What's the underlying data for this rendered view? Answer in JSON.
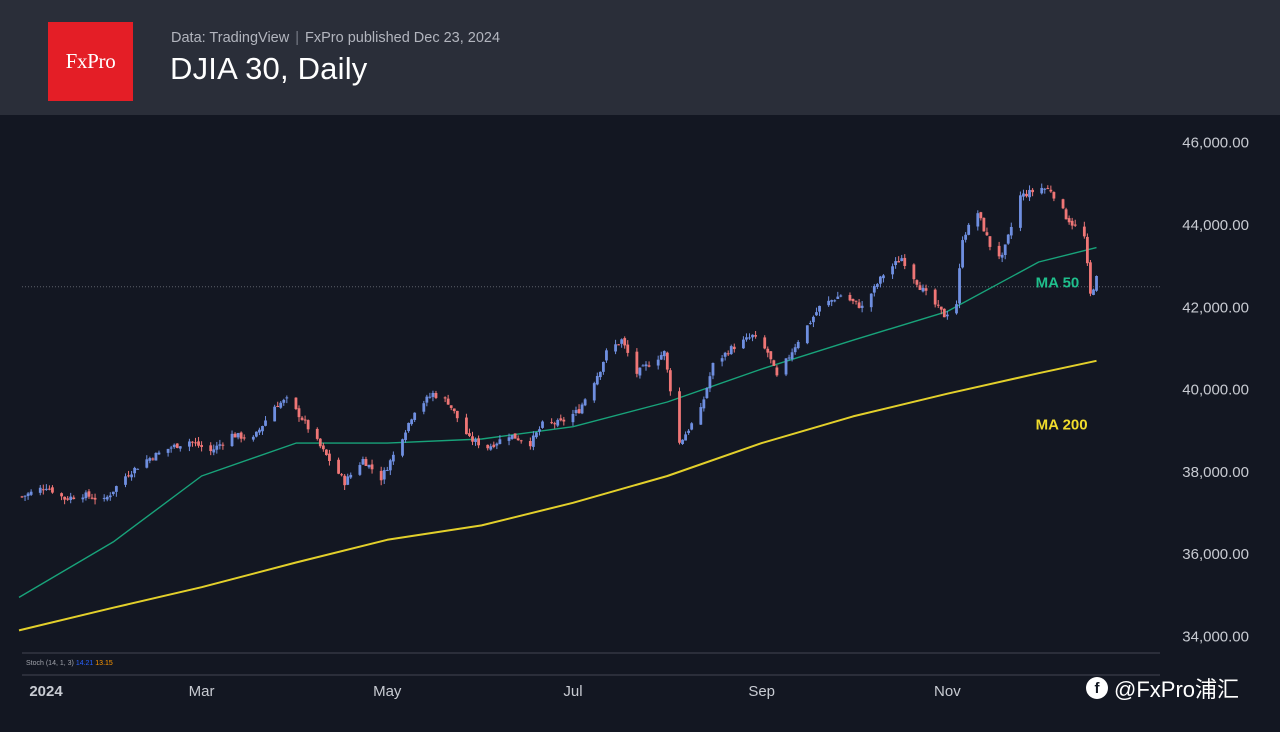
{
  "header": {
    "logo_text": "FxPro",
    "source_left": "Data: TradingView",
    "source_separator": "|",
    "source_right": "FxPro published Dec 23, 2024",
    "title": "DJIA 30, Daily"
  },
  "watermark": {
    "icon": "f-logo-icon",
    "text": "@FxPro浦汇"
  },
  "colors": {
    "background": "#131722",
    "header": "#2a2e39",
    "logo": "#e41e26",
    "up_candle": "#6f8fe0",
    "down_candle": "#ef7676",
    "ma50": "#18a37a",
    "ma200": "#e3d02b",
    "ma50_label": "#1fbf8c",
    "ma200_label": "#f0dc2c",
    "stoch_k": "#2962ff",
    "stoch_d": "#ff9800"
  },
  "stoch_label": {
    "name": "Stoch (14, 1, 3)",
    "k": "14.21",
    "d": "13.15"
  },
  "chart_data": {
    "type": "candlestick",
    "title": "DJIA 30, Daily",
    "y_axis": {
      "ticks": [
        34000,
        36000,
        38000,
        40000,
        42000,
        44000,
        46000
      ],
      "tick_labels": [
        "34,000.00",
        "36,000.00",
        "38,000.00",
        "40,000.00",
        "42,000.00",
        "44,000.00",
        "46,000.00"
      ],
      "range": [
        33600,
        46600
      ]
    },
    "x_axis": {
      "range": [
        "2024-01-02",
        "2024-12-31"
      ],
      "ticks": [
        "2024-01-01",
        "2024-03-01",
        "2024-05-01",
        "2024-07-01",
        "2024-09-01",
        "2024-11-01"
      ],
      "tick_labels": [
        "2024",
        "Mar",
        "May",
        "Jul",
        "Sep",
        "Nov"
      ]
    },
    "reference_line": 42500,
    "price_path": [
      [
        "2024-01-02",
        37400
      ],
      [
        "2024-01-10",
        37650
      ],
      [
        "2024-01-16",
        37350
      ],
      [
        "2024-01-22",
        37450
      ],
      [
        "2024-01-29",
        37300
      ],
      [
        "2024-02-05",
        37900
      ],
      [
        "2024-02-12",
        38300
      ],
      [
        "2024-02-20",
        38600
      ],
      [
        "2024-02-26",
        38750
      ],
      [
        "2024-03-04",
        38500
      ],
      [
        "2024-03-11",
        38900
      ],
      [
        "2024-03-18",
        38800
      ],
      [
        "2024-03-25",
        39600
      ],
      [
        "2024-03-29",
        39750
      ],
      [
        "2024-04-03",
        39300
      ],
      [
        "2024-04-10",
        38500
      ],
      [
        "2024-04-17",
        37750
      ],
      [
        "2024-04-23",
        38300
      ],
      [
        "2024-04-29",
        37850
      ],
      [
        "2024-05-03",
        38400
      ],
      [
        "2024-05-10",
        39500
      ],
      [
        "2024-05-16",
        39900
      ],
      [
        "2024-05-21",
        39700
      ],
      [
        "2024-05-28",
        38800
      ],
      [
        "2024-06-03",
        38600
      ],
      [
        "2024-06-10",
        38900
      ],
      [
        "2024-06-17",
        38700
      ],
      [
        "2024-06-21",
        39150
      ],
      [
        "2024-06-27",
        39200
      ],
      [
        "2024-07-03",
        39500
      ],
      [
        "2024-07-10",
        40500
      ],
      [
        "2024-07-12",
        40900
      ],
      [
        "2024-07-17",
        41200
      ],
      [
        "2024-07-22",
        40400
      ],
      [
        "2024-07-31",
        40900
      ],
      [
        "2024-08-05",
        38700
      ],
      [
        "2024-08-12",
        39500
      ],
      [
        "2024-08-16",
        40600
      ],
      [
        "2024-08-22",
        41000
      ],
      [
        "2024-08-29",
        41300
      ],
      [
        "2024-09-03",
        40900
      ],
      [
        "2024-09-06",
        40300
      ],
      [
        "2024-09-13",
        41200
      ],
      [
        "2024-09-20",
        42000
      ],
      [
        "2024-09-27",
        42300
      ],
      [
        "2024-10-04",
        42000
      ],
      [
        "2024-10-11",
        42800
      ],
      [
        "2024-10-17",
        43200
      ],
      [
        "2024-10-23",
        42500
      ],
      [
        "2024-10-31",
        41800
      ],
      [
        "2024-11-04",
        42100
      ],
      [
        "2024-11-06",
        43700
      ],
      [
        "2024-11-11",
        44300
      ],
      [
        "2024-11-15",
        43500
      ],
      [
        "2024-11-19",
        43200
      ],
      [
        "2024-11-25",
        44700
      ],
      [
        "2024-12-02",
        44900
      ],
      [
        "2024-12-05",
        44850
      ],
      [
        "2024-12-10",
        44200
      ],
      [
        "2024-12-16",
        43700
      ],
      [
        "2024-12-18",
        42300
      ],
      [
        "2024-12-20",
        42700
      ]
    ],
    "series": [
      {
        "name": "MA 50",
        "points": [
          [
            "2024-01-01",
            34950
          ],
          [
            "2024-02-01",
            36300
          ],
          [
            "2024-03-01",
            37900
          ],
          [
            "2024-04-01",
            38700
          ],
          [
            "2024-05-01",
            38700
          ],
          [
            "2024-06-01",
            38800
          ],
          [
            "2024-07-01",
            39100
          ],
          [
            "2024-08-01",
            39700
          ],
          [
            "2024-09-01",
            40500
          ],
          [
            "2024-10-01",
            41200
          ],
          [
            "2024-11-01",
            41900
          ],
          [
            "2024-12-01",
            43100
          ],
          [
            "2024-12-20",
            43450
          ]
        ]
      },
      {
        "name": "MA 200",
        "points": [
          [
            "2024-01-01",
            34150
          ],
          [
            "2024-02-01",
            34700
          ],
          [
            "2024-03-01",
            35200
          ],
          [
            "2024-04-01",
            35800
          ],
          [
            "2024-05-01",
            36350
          ],
          [
            "2024-06-01",
            36700
          ],
          [
            "2024-07-01",
            37250
          ],
          [
            "2024-08-01",
            37900
          ],
          [
            "2024-09-01",
            38700
          ],
          [
            "2024-10-01",
            39350
          ],
          [
            "2024-11-01",
            39900
          ],
          [
            "2024-12-01",
            40400
          ],
          [
            "2024-12-20",
            40700
          ]
        ]
      }
    ],
    "series_labels": {
      "ma50": {
        "text": "MA 50",
        "at": [
          "2024-11-30",
          42600
        ]
      },
      "ma200": {
        "text": "MA 200",
        "at": [
          "2024-11-30",
          39150
        ]
      }
    }
  }
}
